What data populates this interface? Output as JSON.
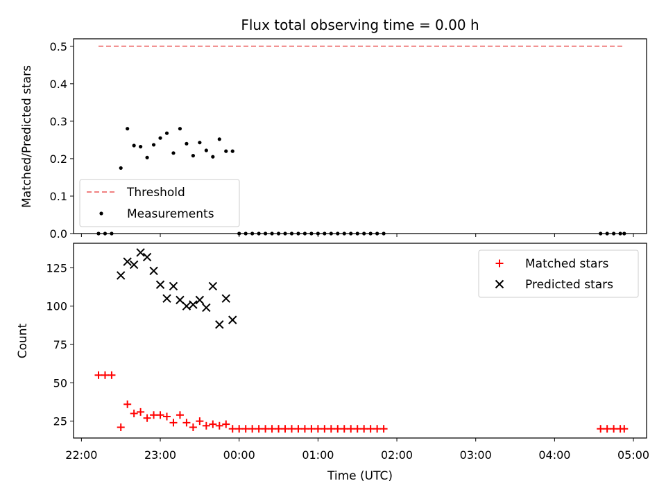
{
  "title": "Flux total observing time = 0.00 h",
  "colors": {
    "threshold": "#f08080",
    "measurements": "#000000",
    "matched": "#ff0000",
    "predicted": "#000000",
    "axes": "#000000",
    "background": "#ffffff"
  },
  "chart_data": [
    {
      "type": "scatter",
      "ylabel": "Matched/Predicted stars",
      "xlabel": "",
      "xlim": [
        "21:54",
        "05:10"
      ],
      "ylim": [
        0,
        0.52
      ],
      "yticks": [
        0.0,
        0.1,
        0.2,
        0.3,
        0.4,
        0.5
      ],
      "ytick_labels": [
        "0.0",
        "0.1",
        "0.2",
        "0.3",
        "0.4",
        "0.5"
      ],
      "legend_position": "lower-left",
      "series": [
        {
          "name": "Threshold",
          "kind": "dashed-line",
          "x": [
            "22:13",
            "04:53"
          ],
          "y": [
            0.5,
            0.5
          ]
        },
        {
          "name": "Measurements",
          "kind": "dot",
          "x": [
            "22:13",
            "22:18",
            "22:23",
            "22:30",
            "22:35",
            "22:40",
            "22:45",
            "22:50",
            "22:55",
            "23:00",
            "23:05",
            "23:10",
            "23:15",
            "23:20",
            "23:25",
            "23:30",
            "23:35",
            "23:40",
            "23:45",
            "23:50",
            "23:55",
            "00:00",
            "00:05",
            "00:10",
            "00:15",
            "00:20",
            "00:25",
            "00:30",
            "00:35",
            "00:40",
            "00:45",
            "00:50",
            "00:55",
            "01:00",
            "01:05",
            "01:10",
            "01:15",
            "01:20",
            "01:25",
            "01:30",
            "01:35",
            "01:40",
            "01:45",
            "01:50",
            "04:35",
            "04:40",
            "04:45",
            "04:50",
            "04:53"
          ],
          "y": [
            0.0,
            0.0,
            0.0,
            0.175,
            0.28,
            0.235,
            0.232,
            0.203,
            0.237,
            0.255,
            0.268,
            0.215,
            0.28,
            0.24,
            0.208,
            0.243,
            0.222,
            0.205,
            0.252,
            0.22,
            0.22,
            0.0,
            0.0,
            0.0,
            0.0,
            0.0,
            0.0,
            0.0,
            0.0,
            0.0,
            0.0,
            0.0,
            0.0,
            0.0,
            0.0,
            0.0,
            0.0,
            0.0,
            0.0,
            0.0,
            0.0,
            0.0,
            0.0,
            0.0,
            0.0,
            0.0,
            0.0,
            0.0,
            0.0
          ]
        }
      ]
    },
    {
      "type": "scatter",
      "ylabel": "Count",
      "xlabel": "Time (UTC)",
      "xlim": [
        "21:54",
        "05:10"
      ],
      "ylim": [
        14,
        141
      ],
      "yticks": [
        25,
        50,
        75,
        100,
        125
      ],
      "ytick_labels": [
        "25",
        "50",
        "75",
        "100",
        "125"
      ],
      "xticks": [
        "22:00",
        "23:00",
        "00:00",
        "01:00",
        "02:00",
        "03:00",
        "04:00",
        "05:00"
      ],
      "xtick_labels": [
        "22:00",
        "23:00",
        "00:00",
        "01:00",
        "02:00",
        "03:00",
        "04:00",
        "05:00"
      ],
      "legend_position": "upper-right",
      "series": [
        {
          "name": "Matched stars",
          "kind": "plus",
          "x": [
            "22:13",
            "22:18",
            "22:23",
            "22:30",
            "22:35",
            "22:40",
            "22:45",
            "22:50",
            "22:55",
            "23:00",
            "23:05",
            "23:10",
            "23:15",
            "23:20",
            "23:25",
            "23:30",
            "23:35",
            "23:40",
            "23:45",
            "23:50",
            "23:55",
            "00:00",
            "00:05",
            "00:10",
            "00:15",
            "00:20",
            "00:25",
            "00:30",
            "00:35",
            "00:40",
            "00:45",
            "00:50",
            "00:55",
            "01:00",
            "01:05",
            "01:10",
            "01:15",
            "01:20",
            "01:25",
            "01:30",
            "01:35",
            "01:40",
            "01:45",
            "01:50",
            "04:35",
            "04:40",
            "04:45",
            "04:50",
            "04:53"
          ],
          "y": [
            55,
            55,
            55,
            21,
            36,
            30,
            31,
            27,
            29,
            29,
            28,
            24,
            29,
            24,
            21,
            25,
            22,
            23,
            22,
            23,
            20,
            20,
            20,
            20,
            20,
            20,
            20,
            20,
            20,
            20,
            20,
            20,
            20,
            20,
            20,
            20,
            20,
            20,
            20,
            20,
            20,
            20,
            20,
            20,
            20,
            20,
            20,
            20,
            20
          ]
        },
        {
          "name": "Predicted stars",
          "kind": "x",
          "x": [
            "22:30",
            "22:35",
            "22:40",
            "22:45",
            "22:50",
            "22:55",
            "23:00",
            "23:05",
            "23:10",
            "23:15",
            "23:20",
            "23:25",
            "23:30",
            "23:35",
            "23:40",
            "23:45",
            "23:50",
            "23:55"
          ],
          "y": [
            120,
            129,
            127,
            135,
            132,
            123,
            114,
            105,
            113,
            104,
            100,
            101,
            104,
            99,
            113,
            88,
            105,
            91
          ]
        }
      ]
    }
  ]
}
